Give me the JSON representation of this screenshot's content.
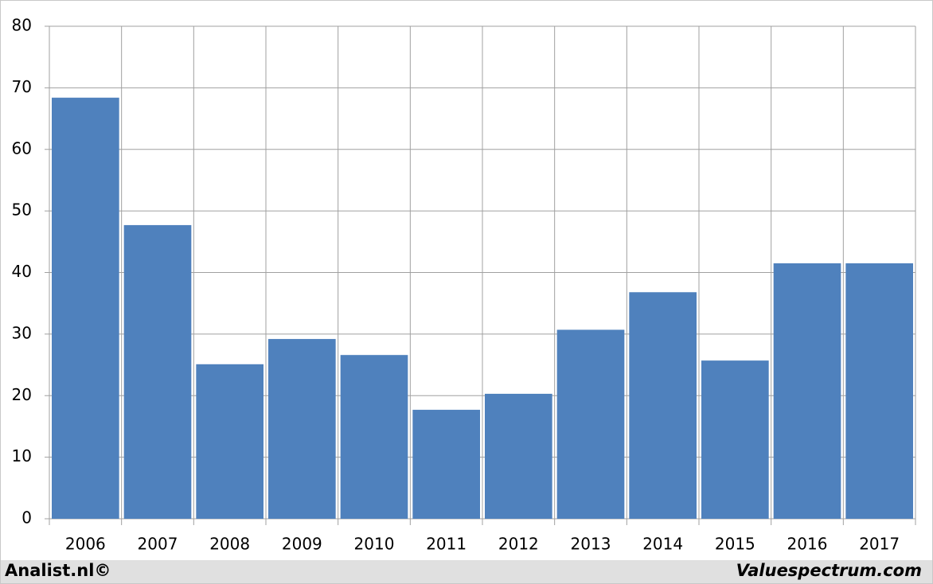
{
  "chart_data": {
    "type": "bar",
    "categories": [
      "2006",
      "2007",
      "2008",
      "2009",
      "2010",
      "2011",
      "2012",
      "2013",
      "2014",
      "2015",
      "2016",
      "2017"
    ],
    "values": [
      68.4,
      47.7,
      25.1,
      29.2,
      26.6,
      17.7,
      20.3,
      30.7,
      36.8,
      25.7,
      41.5,
      41.5
    ],
    "color": "#4f81bd",
    "ylim": [
      0,
      80
    ],
    "yticks": [
      0,
      10,
      20,
      30,
      40,
      50,
      60,
      70,
      80
    ],
    "grid": true,
    "source_left": "Analist.nl©",
    "source_right": "Valuespectrum.com"
  }
}
